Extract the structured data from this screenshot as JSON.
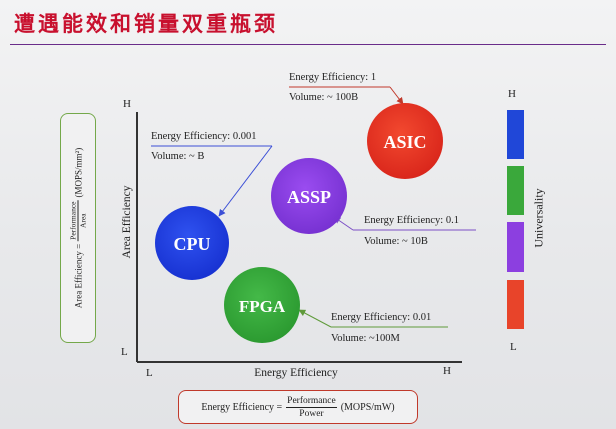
{
  "title": "遭遇能效和销量双重瓶颈",
  "axes": {
    "x_label": "Energy Efficiency",
    "y_label": "Area Efficiency",
    "x_low": "L",
    "x_high": "H",
    "y_low": "L",
    "y_high": "H"
  },
  "chips": [
    {
      "name": "ASIC",
      "color": "#e63422"
    },
    {
      "name": "ASSP",
      "color": "#8a3ee0"
    },
    {
      "name": "CPU",
      "color": "#1f3fe0"
    },
    {
      "name": "FPGA",
      "color": "#36a83b"
    }
  ],
  "annotations": [
    {
      "chip": "ASIC",
      "energy": "Energy Efficiency: 1",
      "volume": "Volume: ~ 100B",
      "line_color": "#c0392b"
    },
    {
      "chip": "CPU",
      "energy": "Energy Efficiency: 0.001",
      "volume": "Volume: ~ B",
      "line_color": "#3b4fd6"
    },
    {
      "chip": "ASSP",
      "energy": "Energy Efficiency: 0.1",
      "volume": "Volume: ~ 10B",
      "line_color": "#7b4fc6"
    },
    {
      "chip": "FPGA",
      "energy": "Energy Efficiency: 0.01",
      "volume": "Volume: ~100M",
      "line_color": "#5f9a3a"
    }
  ],
  "area_formula": {
    "prefix": "Area Efficiency =",
    "numerator": "Performance",
    "denominator": "Area",
    "unit": "(MOPS/mm²)"
  },
  "energy_formula": {
    "prefix": "Energy Efficiency =",
    "numerator": "Performance",
    "denominator": "Power",
    "unit": "(MOPS/mW)"
  },
  "universality": {
    "label": "Universality",
    "high": "H",
    "low": "L",
    "bar_colors": [
      "#2047d8",
      "#3aa83b",
      "#8c3fe0",
      "#e8442a"
    ]
  }
}
